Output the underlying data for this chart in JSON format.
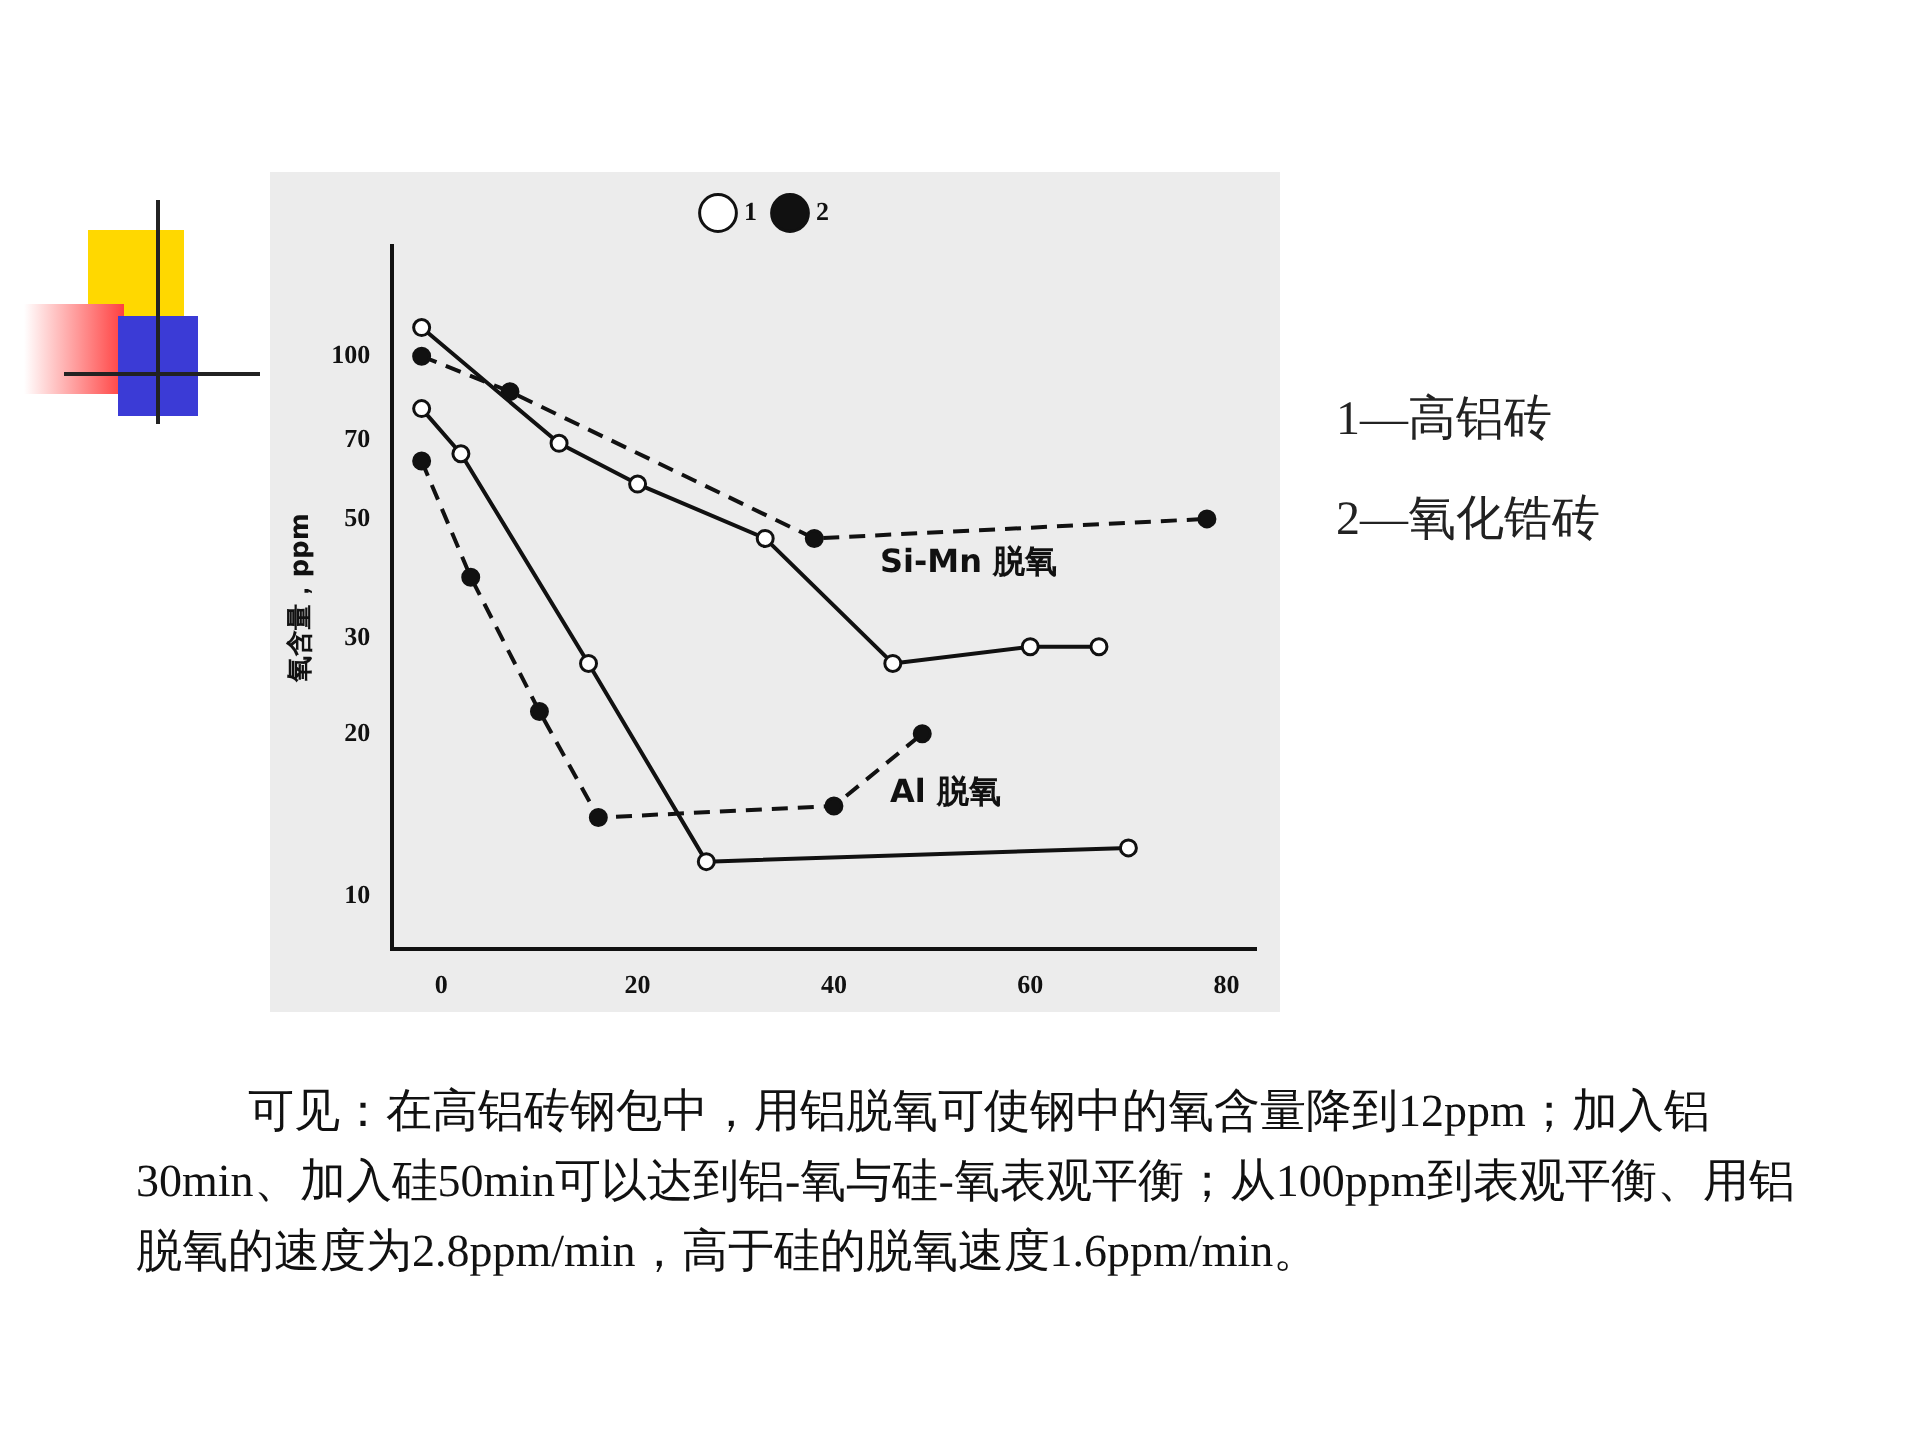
{
  "chart_data": {
    "type": "line",
    "ylabel": "氧含量，ppm",
    "log": "y",
    "xlim": [
      -5,
      83
    ],
    "xticks": [
      0,
      20,
      40,
      60,
      80
    ],
    "ylim": [
      8,
      160
    ],
    "yticks": [
      10,
      20,
      30,
      50,
      70,
      100
    ],
    "grid": false,
    "legend": "top",
    "marker": "circle",
    "series": [
      {
        "name": "1",
        "color": "#111111",
        "line_style": "solid",
        "x": [
          -2,
          12,
          20,
          33,
          46,
          60,
          67
        ],
        "values": [
          113,
          69,
          58,
          46,
          27,
          29,
          29
        ]
      },
      {
        "name": "2",
        "color": "#111111",
        "line_style": "dashed",
        "x": [
          -2,
          7,
          38,
          78
        ],
        "values": [
          100,
          86,
          46,
          50
        ]
      },
      {
        "color": "#111111",
        "line_style": "solid",
        "x": [
          -2,
          2,
          15,
          27,
          70
        ],
        "values": [
          80,
          66,
          27,
          11.6,
          12.3
        ]
      },
      {
        "color": "#111111",
        "line_style": "dashed",
        "x": [
          -2,
          3,
          10,
          16,
          40,
          49
        ],
        "values": [
          64,
          39,
          22,
          14,
          14.7,
          20
        ]
      }
    ],
    "annotations": [
      "1—高铝砖",
      "2—氧化锆砖",
      "Si-Mn 脱氧",
      "Al 脱氧",
      "可见：在高铝砖钢包中，用铝脱氧可使钢中的氧含量降到12ppm；加入铝30min、加入硅50min可以达到铝-氧与硅-氧表观平衡；从100ppm到表观平衡、用铝脱氧的速度为2.8ppm/min，高于硅的脱氧速度1.6ppm/min。"
    ]
  }
}
